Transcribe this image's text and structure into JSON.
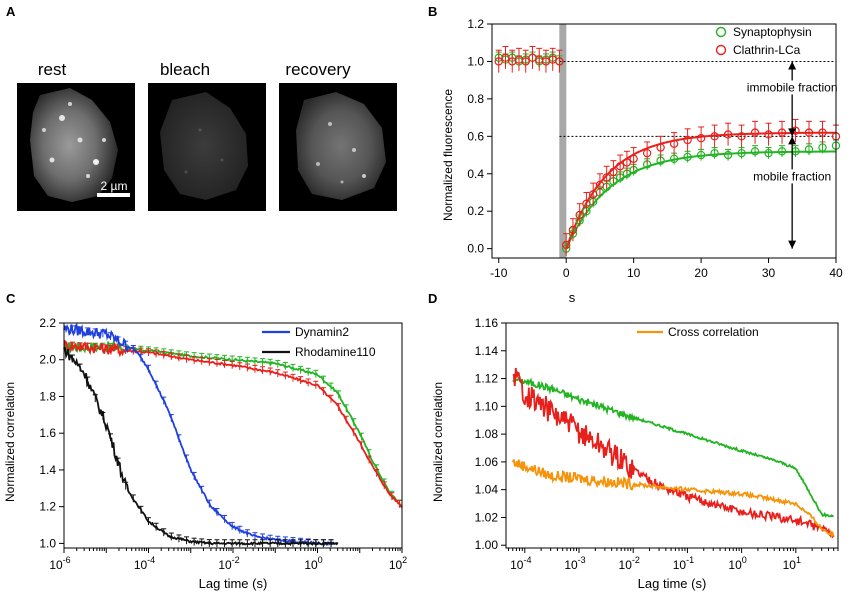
{
  "panels": {
    "A": {
      "letter": "A",
      "labels": [
        "rest",
        "bleach",
        "recovery"
      ],
      "scale_bar": "2 µm"
    },
    "B": {
      "letter": "B"
    },
    "C": {
      "letter": "C"
    },
    "D": {
      "letter": "D"
    }
  },
  "colors": {
    "green": "#22b422",
    "red": "#e8201c",
    "blue": "#1f3fe0",
    "black": "#111111",
    "orange": "#f5930a",
    "gray": "#a8a8a8"
  },
  "chart_data": [
    {
      "panel": "B",
      "type": "scatter",
      "title": "",
      "xlabel": "s",
      "ylabel": "Normalized fluorescence",
      "xlim": [
        -11,
        40
      ],
      "ylim": [
        -0.05,
        1.2
      ],
      "xticks": [
        -10,
        0,
        10,
        20,
        30,
        40
      ],
      "xtick_labels": [
        "-10",
        "0",
        "10",
        "20",
        "30",
        "40"
      ],
      "yticks": [
        0.0,
        0.2,
        0.4,
        0.6,
        0.8,
        1.0,
        1.2
      ],
      "ytick_labels": [
        "0.0",
        "0.2",
        "0.4",
        "0.6",
        "0.8",
        "1.0",
        "1.2"
      ],
      "legend": [
        "Synaptophysin",
        "Clathrin-LCa"
      ],
      "bleach_time": -0.5,
      "reference_lines": [
        1.0,
        0.6
      ],
      "fits": [
        {
          "name": "Synaptophysin",
          "color": "green",
          "plateau": 0.52,
          "tau": 6.5
        },
        {
          "name": "Clathrin-LCa",
          "color": "red",
          "plateau": 0.62,
          "tau": 6.0
        }
      ],
      "series": [
        {
          "name": "Synaptophysin",
          "color": "green",
          "marker": "circle",
          "error": 0.03,
          "x": [
            -10,
            -9,
            -8,
            -7,
            -6,
            -5,
            -4,
            -3,
            -2,
            -1,
            0,
            1,
            2,
            3,
            4,
            5,
            6,
            7,
            8,
            9,
            10,
            12,
            14,
            16,
            18,
            20,
            22,
            24,
            26,
            28,
            30,
            32,
            34,
            36,
            38,
            40
          ],
          "y": [
            1.02,
            1.01,
            1.02,
            1.0,
            1.01,
            1.02,
            1.0,
            1.01,
            1.02,
            1.0,
            0.0,
            0.08,
            0.15,
            0.2,
            0.25,
            0.3,
            0.33,
            0.36,
            0.38,
            0.4,
            0.42,
            0.45,
            0.47,
            0.48,
            0.49,
            0.5,
            0.51,
            0.5,
            0.51,
            0.52,
            0.51,
            0.52,
            0.52,
            0.53,
            0.54,
            0.55
          ]
        },
        {
          "name": "Clathrin-LCa",
          "color": "red",
          "marker": "circle",
          "error": 0.06,
          "x": [
            -10,
            -9,
            -8,
            -7,
            -6,
            -5,
            -4,
            -3,
            -2,
            -1,
            0,
            1,
            2,
            3,
            4,
            5,
            6,
            7,
            8,
            9,
            10,
            12,
            14,
            16,
            18,
            20,
            22,
            24,
            26,
            28,
            30,
            32,
            34,
            36,
            38,
            40
          ],
          "y": [
            1.0,
            1.02,
            1.0,
            1.01,
            1.0,
            1.02,
            1.01,
            1.0,
            1.01,
            1.0,
            0.02,
            0.1,
            0.18,
            0.24,
            0.29,
            0.34,
            0.38,
            0.41,
            0.44,
            0.46,
            0.48,
            0.51,
            0.54,
            0.56,
            0.58,
            0.59,
            0.6,
            0.61,
            0.6,
            0.62,
            0.61,
            0.62,
            0.63,
            0.62,
            0.62,
            0.6
          ]
        }
      ],
      "annotations": [
        {
          "text": "immobile fraction",
          "x": 33.5,
          "y_from": 1.0,
          "y_to": 0.6,
          "text_y": 0.845
        },
        {
          "text": "mobile fraction",
          "x": 33.5,
          "y_from": 0.6,
          "y_to": 0.0,
          "text_y": 0.37
        }
      ]
    },
    {
      "panel": "C",
      "type": "line",
      "xscale": "log",
      "xlabel": "Lag time (s)",
      "ylabel": "Normalized correlation",
      "xlim": [
        1e-06,
        100
      ],
      "ylim": [
        0.975,
        2.2
      ],
      "xticks": [
        1e-06,
        0.0001,
        0.01,
        1,
        100
      ],
      "xtick_labels": [
        {
          "base": "10",
          "exp": "-6"
        },
        {
          "base": "10",
          "exp": "-4"
        },
        {
          "base": "10",
          "exp": "-2"
        },
        {
          "base": "10",
          "exp": "0"
        },
        {
          "base": "10",
          "exp": "2"
        }
      ],
      "yticks": [
        1.0,
        1.2,
        1.4,
        1.6,
        1.8,
        2.0,
        2.2
      ],
      "ytick_labels": [
        "1.0",
        "1.2",
        "1.4",
        "1.6",
        "1.8",
        "2.0",
        "2.2"
      ],
      "legend": [
        "Dynamin2",
        "Rhodamine110"
      ],
      "series": [
        {
          "name": "Green",
          "color": "green",
          "x_end": 100,
          "x": [
            1e-06,
            1e-05,
            0.0001,
            0.001,
            0.01,
            0.1,
            1,
            3,
            10,
            20,
            50,
            100
          ],
          "y": [
            2.07,
            2.07,
            2.05,
            2.02,
            2.0,
            1.98,
            1.92,
            1.82,
            1.6,
            1.45,
            1.28,
            1.2
          ]
        },
        {
          "name": "Red",
          "color": "red",
          "x_end": 100,
          "x": [
            1e-06,
            1e-05,
            0.0001,
            0.001,
            0.01,
            0.1,
            1,
            3,
            10,
            20,
            50,
            100
          ],
          "y": [
            2.08,
            2.06,
            2.04,
            2.0,
            1.97,
            1.93,
            1.86,
            1.75,
            1.55,
            1.42,
            1.27,
            1.2
          ]
        },
        {
          "name": "Dynamin2",
          "color": "blue",
          "x_end": 3,
          "x": [
            1e-06,
            1e-05,
            5e-05,
            0.0001,
            0.0003,
            0.001,
            0.003,
            0.01,
            0.03,
            0.1,
            1,
            3
          ],
          "y": [
            2.17,
            2.14,
            2.05,
            1.95,
            1.72,
            1.4,
            1.2,
            1.09,
            1.04,
            1.02,
            1.0,
            1.0
          ]
        },
        {
          "name": "Rhodamine110",
          "color": "black",
          "x_end": 3,
          "x": [
            1e-06,
            3e-06,
            1e-05,
            3e-05,
            0.0001,
            0.0003,
            0.001,
            0.003,
            0.01,
            0.1,
            1,
            3
          ],
          "y": [
            2.06,
            1.93,
            1.65,
            1.3,
            1.12,
            1.04,
            1.01,
            1.0,
            1.0,
            1.0,
            1.0,
            1.0
          ]
        }
      ]
    },
    {
      "panel": "D",
      "type": "line",
      "xscale": "log",
      "xlabel": "Lag time (s)",
      "ylabel": "Normalized correlation",
      "xlim": [
        4.5e-05,
        60
      ],
      "ylim": [
        0.998,
        1.16
      ],
      "xticks": [
        0.0001,
        0.001,
        0.01,
        0.1,
        1,
        10
      ],
      "xtick_labels": [
        {
          "base": "10",
          "exp": "-4"
        },
        {
          "base": "10",
          "exp": "-3"
        },
        {
          "base": "10",
          "exp": "-2"
        },
        {
          "base": "10",
          "exp": "-1"
        },
        {
          "base": "10",
          "exp": "0"
        },
        {
          "base": "10",
          "exp": "1"
        }
      ],
      "yticks": [
        1.0,
        1.02,
        1.04,
        1.06,
        1.08,
        1.1,
        1.12,
        1.14,
        1.16
      ],
      "ytick_labels": [
        "1.00",
        "1.02",
        "1.04",
        "1.06",
        "1.08",
        "1.10",
        "1.12",
        "1.14",
        "1.16"
      ],
      "legend": [
        "Cross correlation"
      ],
      "series": [
        {
          "name": "Green",
          "color": "green",
          "noise": 0.0025,
          "x": [
            6e-05,
            0.0001,
            0.0003,
            0.001,
            0.01,
            0.1,
            1,
            5,
            10,
            20,
            30,
            50
          ],
          "y": [
            1.12,
            1.118,
            1.113,
            1.105,
            1.092,
            1.08,
            1.068,
            1.06,
            1.055,
            1.035,
            1.022,
            1.021
          ]
        },
        {
          "name": "Red",
          "color": "red",
          "noise": 0.009,
          "x": [
            6e-05,
            0.0001,
            0.0003,
            0.001,
            0.003,
            0.01,
            0.03,
            0.1,
            1,
            10,
            30,
            50
          ],
          "y": [
            1.125,
            1.11,
            1.096,
            1.082,
            1.07,
            1.055,
            1.043,
            1.035,
            1.024,
            1.018,
            1.012,
            1.008
          ]
        },
        {
          "name": "Cross correlation",
          "color": "orange",
          "noise": 0.004,
          "x": [
            6e-05,
            0.0001,
            0.0003,
            0.001,
            0.01,
            0.1,
            1,
            10,
            20,
            30,
            50
          ],
          "y": [
            1.06,
            1.057,
            1.05,
            1.048,
            1.044,
            1.04,
            1.037,
            1.03,
            1.02,
            1.012,
            1.007
          ]
        }
      ]
    }
  ]
}
